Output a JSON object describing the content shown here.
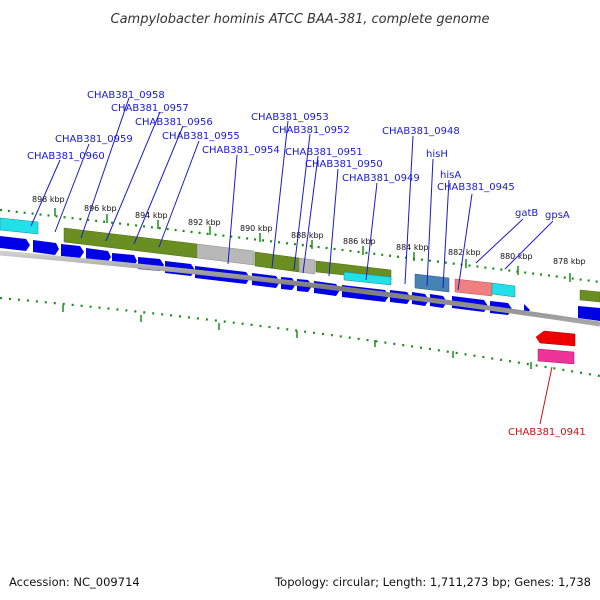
{
  "title": "Campylobacter hominis ATCC BAA-381, complete genome",
  "footer": {
    "accession": "Accession: NC_009714",
    "summary": "Topology: circular; Length: 1,711,273 bp; Genes: 1,738"
  },
  "scale_ticks": [
    "898 kbp",
    "896 kbp",
    "894 kbp",
    "892 kbp",
    "890 kbp",
    "888 kbp",
    "886 kbp",
    "884 kbp",
    "882 kbp",
    "880 kbp",
    "878 kbp"
  ],
  "gene_labels": [
    "CHAB381_0958",
    "CHAB381_0957",
    "CHAB381_0956",
    "CHAB381_0959",
    "CHAB381_0955",
    "CHAB381_0960",
    "CHAB381_0954",
    "CHAB381_0953",
    "CHAB381_0952",
    "CHAB381_0951",
    "CHAB381_0950",
    "CHAB381_0949",
    "CHAB381_0948",
    "hisH",
    "hisA",
    "CHAB381_0945",
    "gatB",
    "gpsA",
    "CHAB381_0941"
  ],
  "colors": {
    "gene_arrow": "#0000e6",
    "cds_olive": "#6b8e23",
    "cds_grey": "#b8b8b8",
    "cds_cyan": "#22e0e8",
    "cds_steelblue": "#4682b4",
    "cds_salmon": "#f08080",
    "red_feature": "#ee0000",
    "pink_feature": "#ee3399",
    "label_blue": "#1a1acd",
    "label_red": "#cc1111",
    "tick_green": "#1a8c1a"
  }
}
